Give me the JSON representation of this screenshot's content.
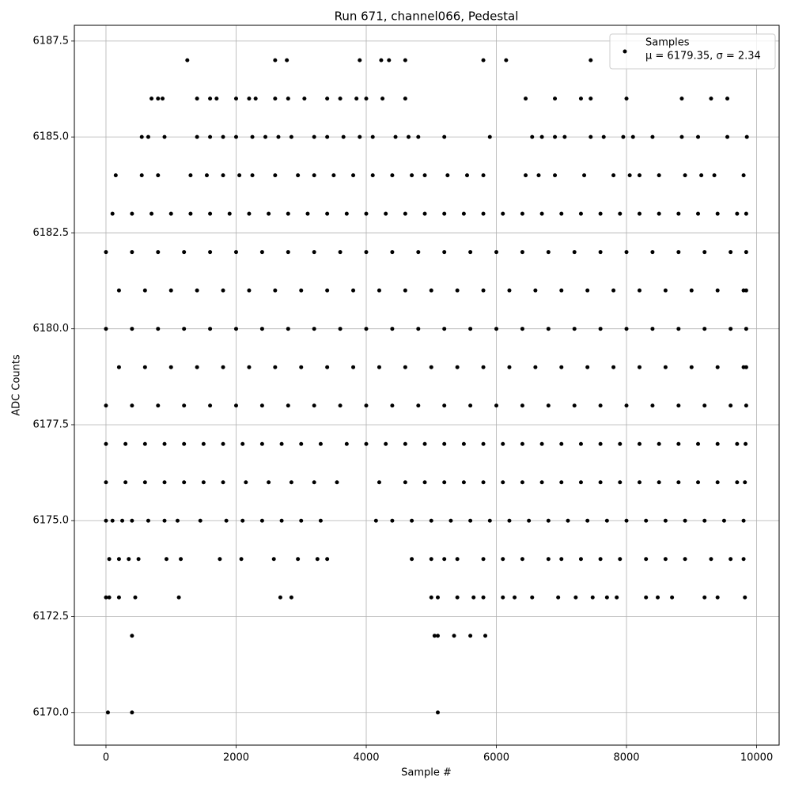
{
  "chart_data": {
    "type": "scatter",
    "title": "Run 671, channel066, Pedestal",
    "x_label": "Sample #",
    "y_label": "ADC Counts",
    "xlim": [
      -486,
      10346
    ],
    "ylim": [
      6169.15,
      6187.91
    ],
    "xticks": [
      0,
      2000,
      4000,
      6000,
      8000,
      10000
    ],
    "yticks": [
      {
        "value": 6170,
        "label": "6170.0"
      },
      {
        "value": 6172.5,
        "label": "6172.5"
      },
      {
        "value": 6175,
        "label": "6175.0"
      },
      {
        "value": 6177.5,
        "label": "6177.5"
      },
      {
        "value": 6180,
        "label": "6180.0"
      },
      {
        "value": 6182.5,
        "label": "6182.5"
      },
      {
        "value": 6185,
        "label": "6185.0"
      },
      {
        "value": 6187.5,
        "label": "6187.5"
      }
    ],
    "grid": true,
    "legend": "upper right",
    "legend_note": "μ = 6179.35, σ = 2.34",
    "series": [
      {
        "name": "Samples",
        "color": "#000000",
        "x": [
          30,
          400,
          5100,
          400,
          5050,
          5100,
          5350,
          5600,
          5830,
          0,
          50,
          200,
          450,
          1120,
          2680,
          2850,
          5000,
          5100,
          5400,
          5650,
          5800,
          6100,
          6280,
          6550,
          6950,
          7220,
          7480,
          7700,
          7850,
          8300,
          8480,
          8700,
          9200,
          9400,
          9820,
          50,
          200,
          350,
          500,
          930,
          1150,
          1750,
          2080,
          2580,
          2950,
          3250,
          3400,
          4700,
          5000,
          5200,
          5400,
          5800,
          6100,
          6400,
          6800,
          7000,
          7300,
          7600,
          7900,
          8300,
          8600,
          8900,
          9300,
          9600,
          9800,
          0,
          100,
          250,
          400,
          650,
          900,
          1100,
          1450,
          1850,
          2100,
          2400,
          2700,
          3000,
          3300,
          4150,
          4400,
          4700,
          5000,
          5300,
          5600,
          5900,
          6200,
          6500,
          6800,
          7100,
          7400,
          7700,
          8000,
          8300,
          8600,
          8900,
          9200,
          9500,
          9800,
          0,
          300,
          600,
          900,
          1200,
          1500,
          1800,
          2150,
          2500,
          2850,
          3200,
          3550,
          4200,
          4600,
          4900,
          5200,
          5500,
          5800,
          6100,
          6400,
          6700,
          7000,
          7300,
          7600,
          7900,
          8200,
          8500,
          8800,
          9100,
          9400,
          9700,
          9820,
          0,
          300,
          600,
          900,
          1200,
          1500,
          1800,
          2100,
          2400,
          2700,
          3000,
          3300,
          3700,
          4000,
          4300,
          4600,
          4900,
          5200,
          5500,
          5800,
          6100,
          6400,
          6700,
          7000,
          7300,
          7600,
          7900,
          8200,
          8500,
          8800,
          9100,
          9400,
          9700,
          9830,
          0,
          400,
          800,
          1200,
          1600,
          2000,
          2400,
          2800,
          3200,
          3600,
          4000,
          4400,
          4800,
          5200,
          5600,
          6000,
          6400,
          6800,
          7200,
          7600,
          8000,
          8400,
          8800,
          9200,
          9600,
          9840,
          200,
          600,
          1000,
          1400,
          1800,
          2200,
          2600,
          3000,
          3400,
          3800,
          4200,
          4600,
          5000,
          5400,
          5800,
          6200,
          6600,
          7000,
          7400,
          7800,
          8200,
          8600,
          9000,
          9400,
          9800,
          9840,
          0,
          400,
          800,
          1200,
          1600,
          2000,
          2400,
          2800,
          3200,
          3600,
          4000,
          4400,
          4800,
          5200,
          5600,
          6000,
          6400,
          6800,
          7200,
          7600,
          8000,
          8400,
          8800,
          9200,
          9600,
          9840,
          200,
          600,
          1000,
          1400,
          1800,
          2200,
          2600,
          3000,
          3400,
          3800,
          4200,
          4600,
          5000,
          5400,
          5800,
          6200,
          6600,
          7000,
          7400,
          7800,
          8200,
          8600,
          9000,
          9400,
          9800,
          9840,
          0,
          400,
          800,
          1200,
          1600,
          2000,
          2400,
          2800,
          3200,
          3600,
          4000,
          4400,
          4800,
          5200,
          5600,
          6000,
          6400,
          6800,
          7200,
          7600,
          8000,
          8400,
          8800,
          9200,
          9600,
          9840,
          100,
          400,
          700,
          1000,
          1300,
          1600,
          1900,
          2200,
          2500,
          2800,
          3100,
          3400,
          3700,
          4000,
          4300,
          4600,
          4900,
          5200,
          5500,
          5800,
          6100,
          6400,
          6700,
          7000,
          7300,
          7600,
          7900,
          8200,
          8500,
          8800,
          9100,
          9400,
          9700,
          9840,
          150,
          550,
          800,
          1300,
          1550,
          1800,
          2050,
          2250,
          2600,
          2950,
          3200,
          3500,
          3800,
          4100,
          4400,
          4700,
          4900,
          5250,
          5550,
          5800,
          6450,
          6650,
          6900,
          7350,
          7800,
          8050,
          8200,
          8500,
          8900,
          9150,
          9350,
          9800,
          550,
          650,
          900,
          1400,
          1600,
          1800,
          2000,
          2250,
          2450,
          2650,
          2850,
          3200,
          3400,
          3650,
          3900,
          4100,
          4450,
          4650,
          4800,
          5200,
          5900,
          6550,
          6700,
          6900,
          7050,
          7450,
          7650,
          7950,
          8100,
          8400,
          8850,
          9100,
          9550,
          9850,
          700,
          800,
          870,
          1400,
          1600,
          1700,
          2000,
          2200,
          2300,
          2600,
          2800,
          3050,
          3400,
          3600,
          3850,
          4000,
          4250,
          4600,
          6450,
          6900,
          7300,
          7450,
          8000,
          8850,
          9300,
          9550,
          1250,
          2600,
          2780,
          3900,
          4230,
          4350,
          4600,
          5800,
          6150,
          7450
        ],
        "values": [
          6170,
          6170,
          6170,
          6172,
          6172,
          6172,
          6172,
          6172,
          6172,
          6173,
          6173,
          6173,
          6173,
          6173,
          6173,
          6173,
          6173,
          6173,
          6173,
          6173,
          6173,
          6173,
          6173,
          6173,
          6173,
          6173,
          6173,
          6173,
          6173,
          6173,
          6173,
          6173,
          6173,
          6173,
          6173,
          6174,
          6174,
          6174,
          6174,
          6174,
          6174,
          6174,
          6174,
          6174,
          6174,
          6174,
          6174,
          6174,
          6174,
          6174,
          6174,
          6174,
          6174,
          6174,
          6174,
          6174,
          6174,
          6174,
          6174,
          6174,
          6174,
          6174,
          6174,
          6174,
          6174,
          6175,
          6175,
          6175,
          6175,
          6175,
          6175,
          6175,
          6175,
          6175,
          6175,
          6175,
          6175,
          6175,
          6175,
          6175,
          6175,
          6175,
          6175,
          6175,
          6175,
          6175,
          6175,
          6175,
          6175,
          6175,
          6175,
          6175,
          6175,
          6175,
          6175,
          6175,
          6175,
          6175,
          6175,
          6176,
          6176,
          6176,
          6176,
          6176,
          6176,
          6176,
          6176,
          6176,
          6176,
          6176,
          6176,
          6176,
          6176,
          6176,
          6176,
          6176,
          6176,
          6176,
          6176,
          6176,
          6176,
          6176,
          6176,
          6176,
          6176,
          6176,
          6176,
          6176,
          6176,
          6176,
          6176,
          6177,
          6177,
          6177,
          6177,
          6177,
          6177,
          6177,
          6177,
          6177,
          6177,
          6177,
          6177,
          6177,
          6177,
          6177,
          6177,
          6177,
          6177,
          6177,
          6177,
          6177,
          6177,
          6177,
          6177,
          6177,
          6177,
          6177,
          6177,
          6177,
          6177,
          6177,
          6177,
          6177,
          6177,
          6178,
          6178,
          6178,
          6178,
          6178,
          6178,
          6178,
          6178,
          6178,
          6178,
          6178,
          6178,
          6178,
          6178,
          6178,
          6178,
          6178,
          6178,
          6178,
          6178,
          6178,
          6178,
          6178,
          6178,
          6178,
          6178,
          6179,
          6179,
          6179,
          6179,
          6179,
          6179,
          6179,
          6179,
          6179,
          6179,
          6179,
          6179,
          6179,
          6179,
          6179,
          6179,
          6179,
          6179,
          6179,
          6179,
          6179,
          6179,
          6179,
          6179,
          6179,
          6179,
          6180,
          6180,
          6180,
          6180,
          6180,
          6180,
          6180,
          6180,
          6180,
          6180,
          6180,
          6180,
          6180,
          6180,
          6180,
          6180,
          6180,
          6180,
          6180,
          6180,
          6180,
          6180,
          6180,
          6180,
          6180,
          6180,
          6181,
          6181,
          6181,
          6181,
          6181,
          6181,
          6181,
          6181,
          6181,
          6181,
          6181,
          6181,
          6181,
          6181,
          6181,
          6181,
          6181,
          6181,
          6181,
          6181,
          6181,
          6181,
          6181,
          6181,
          6181,
          6181,
          6182,
          6182,
          6182,
          6182,
          6182,
          6182,
          6182,
          6182,
          6182,
          6182,
          6182,
          6182,
          6182,
          6182,
          6182,
          6182,
          6182,
          6182,
          6182,
          6182,
          6182,
          6182,
          6182,
          6182,
          6182,
          6182,
          6183,
          6183,
          6183,
          6183,
          6183,
          6183,
          6183,
          6183,
          6183,
          6183,
          6183,
          6183,
          6183,
          6183,
          6183,
          6183,
          6183,
          6183,
          6183,
          6183,
          6183,
          6183,
          6183,
          6183,
          6183,
          6183,
          6183,
          6183,
          6183,
          6183,
          6183,
          6183,
          6183,
          6183,
          6184,
          6184,
          6184,
          6184,
          6184,
          6184,
          6184,
          6184,
          6184,
          6184,
          6184,
          6184,
          6184,
          6184,
          6184,
          6184,
          6184,
          6184,
          6184,
          6184,
          6184,
          6184,
          6184,
          6184,
          6184,
          6184,
          6184,
          6184,
          6184,
          6184,
          6184,
          6184,
          6185,
          6185,
          6185,
          6185,
          6185,
          6185,
          6185,
          6185,
          6185,
          6185,
          6185,
          6185,
          6185,
          6185,
          6185,
          6185,
          6185,
          6185,
          6185,
          6185,
          6185,
          6185,
          6185,
          6185,
          6185,
          6185,
          6185,
          6185,
          6185,
          6185,
          6185,
          6185,
          6185,
          6185,
          6186,
          6186,
          6186,
          6186,
          6186,
          6186,
          6186,
          6186,
          6186,
          6186,
          6186,
          6186,
          6186,
          6186,
          6186,
          6186,
          6186,
          6186,
          6186,
          6186,
          6186,
          6186,
          6186,
          6186,
          6186,
          6186,
          6187,
          6187,
          6187,
          6187,
          6187,
          6187,
          6187,
          6187,
          6187,
          6187
        ]
      }
    ]
  }
}
